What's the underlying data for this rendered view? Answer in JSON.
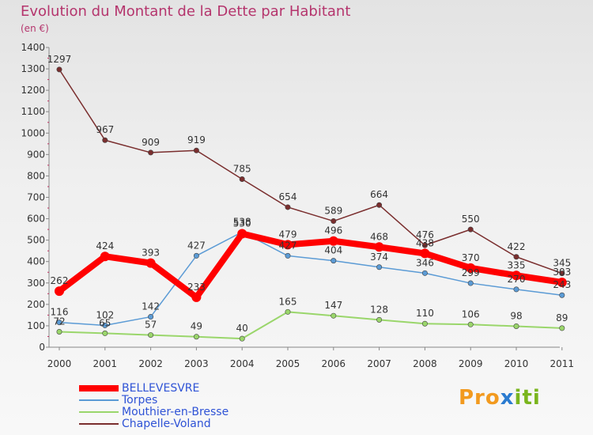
{
  "header": {
    "title": "Evolution du Montant de la Dette par Habitant",
    "unit": "(en €)"
  },
  "brand": {
    "text": "Proxiti"
  },
  "chart_data": {
    "type": "line",
    "title": "Evolution du Montant de la Dette par Habitant",
    "subtitle": "(en €)",
    "xlabel": "",
    "ylabel": "",
    "x": [
      "2000",
      "2001",
      "2002",
      "2003",
      "2004",
      "2005",
      "2006",
      "2007",
      "2008",
      "2009",
      "2010",
      "2011"
    ],
    "ylim": [
      0,
      1400
    ],
    "yticks": [
      0,
      100,
      200,
      300,
      400,
      500,
      600,
      700,
      800,
      900,
      1000,
      1100,
      1200,
      1300,
      1400
    ],
    "grid": false,
    "legend": "bottom-left",
    "series": [
      {
        "name": "BELLEVESVRE",
        "color": "#ff0000",
        "values": [
          262,
          424,
          393,
          233,
          530,
          479,
          496,
          468,
          438,
          370,
          335,
          303
        ],
        "labels": [
          "262",
          "424",
          "393",
          "233",
          "530",
          "479",
          "496",
          "468",
          "438",
          "370",
          "335",
          "303"
        ]
      },
      {
        "name": "Torpes",
        "color": "#5b9bd5",
        "values": [
          116,
          102,
          142,
          427,
          538,
          427,
          404,
          374,
          346,
          299,
          270,
          243
        ],
        "labels": [
          "116",
          "102",
          "142",
          "427",
          "538",
          "427",
          "404",
          "374",
          "346",
          "299",
          "270",
          "243"
        ]
      },
      {
        "name": "Mouthier-en-Bresse",
        "color": "#9ad66b",
        "values": [
          72,
          65,
          57,
          49,
          40,
          165,
          147,
          128,
          110,
          106,
          98,
          89
        ],
        "labels": [
          "72",
          "65",
          "57",
          "49",
          "40",
          "165",
          "147",
          "128",
          "110",
          "106",
          "98",
          "89"
        ]
      },
      {
        "name": "Chapelle-Voland",
        "color": "#7a2e2e",
        "values": [
          1297,
          967,
          909,
          919,
          785,
          654,
          589,
          664,
          476,
          550,
          422,
          345
        ],
        "labels": [
          "1297",
          "967",
          "909",
          "919",
          "785",
          "654",
          "589",
          "664",
          "476",
          "550",
          "422",
          "345"
        ]
      }
    ]
  }
}
